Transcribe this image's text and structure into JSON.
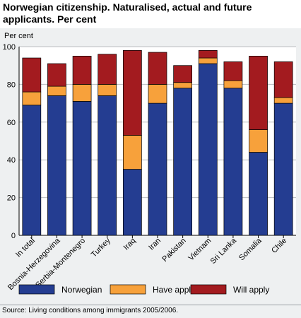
{
  "title": "Norwegian citizenship. Naturalised, actual and future applicants. Per cent",
  "source": "Source: Living conditions among immigrants 2005/2006.",
  "chart_data": {
    "type": "bar",
    "stacked": true,
    "title": "Norwegian citizenship. Naturalised, actual and future applicants. Per cent",
    "ylabel": "Per cent",
    "xlabel": "",
    "ylim": [
      0,
      100
    ],
    "yticks": [
      0,
      20,
      40,
      60,
      80,
      100
    ],
    "grid": true,
    "legend_position": "bottom",
    "categories": [
      "In total",
      "Bosnia-Herzegovina",
      "Serbia-Montenegro",
      "Turkey",
      "Iraq",
      "Iran",
      "Pakistan",
      "Vietnam",
      "Sri Lanka",
      "Somalia",
      "Chile"
    ],
    "series": [
      {
        "name": "Norwegian",
        "color": "#243d91",
        "values": [
          69,
          74,
          71,
          74,
          35,
          70,
          78,
          91,
          78,
          44,
          70
        ]
      },
      {
        "name": "Have applied",
        "color": "#f7a13b",
        "values": [
          7,
          5,
          9,
          6,
          18,
          10,
          3,
          3,
          4,
          12,
          3
        ]
      },
      {
        "name": "Will apply",
        "color": "#a31b1f",
        "values": [
          18,
          12,
          15,
          16,
          45,
          17,
          9,
          4,
          10,
          39,
          19
        ]
      }
    ]
  }
}
